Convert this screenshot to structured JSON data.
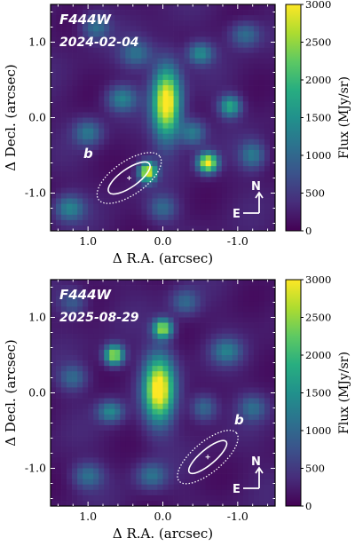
{
  "chart_data": [
    {
      "type": "heatmap",
      "filter": "F444W",
      "date": "2024-02-04",
      "companion_label": "b",
      "xlabel": "Δ R.A. (arcsec)",
      "ylabel": "Δ Decl. (arcsec)",
      "colorbar_label": "Flux (MJy/sr)",
      "x_ticks": [
        "1.0",
        "0.0",
        "-1.0"
      ],
      "y_ticks": [
        "1.0",
        "0.0",
        "-1.0"
      ],
      "colorbar_ticks": [
        "0",
        "500",
        "1000",
        "1500",
        "2000",
        "2500",
        "3000"
      ],
      "compass": {
        "north": "N",
        "east": "E"
      },
      "xlim": [
        1.5,
        -1.5
      ],
      "ylim": [
        -1.5,
        1.5
      ],
      "clim": [
        0,
        3000
      ],
      "colormap": "viridis",
      "sources": [
        {
          "x": -0.05,
          "y": 0.2,
          "sx": 0.13,
          "sy": 0.33,
          "peak": 3000
        },
        {
          "x": -0.6,
          "y": -0.6,
          "sx": 0.09,
          "sy": 0.09,
          "peak": 2900
        },
        {
          "x": 0.2,
          "y": -0.72,
          "sx": 0.08,
          "sy": 0.09,
          "peak": 2700
        },
        {
          "x": -0.9,
          "y": 0.15,
          "sx": 0.1,
          "sy": 0.1,
          "peak": 1600
        },
        {
          "x": -0.5,
          "y": 0.85,
          "sx": 0.12,
          "sy": 0.1,
          "peak": 1200
        },
        {
          "x": 0.55,
          "y": 0.25,
          "sx": 0.14,
          "sy": 0.12,
          "peak": 1100
        },
        {
          "x": -0.4,
          "y": -0.2,
          "sx": 0.12,
          "sy": 0.12,
          "peak": 1100
        },
        {
          "x": 1.0,
          "y": -0.2,
          "sx": 0.13,
          "sy": 0.12,
          "peak": 950
        },
        {
          "x": 0.35,
          "y": 0.85,
          "sx": 0.15,
          "sy": 0.13,
          "peak": 900
        },
        {
          "x": -1.2,
          "y": -0.5,
          "sx": 0.12,
          "sy": 0.13,
          "peak": 1000
        },
        {
          "x": 1.25,
          "y": -1.2,
          "sx": 0.14,
          "sy": 0.12,
          "peak": 1100
        },
        {
          "x": 0.9,
          "y": 1.2,
          "sx": 0.13,
          "sy": 0.12,
          "peak": 900
        },
        {
          "x": -1.1,
          "y": 1.1,
          "sx": 0.14,
          "sy": 0.12,
          "peak": 900
        },
        {
          "x": 0.0,
          "y": -1.2,
          "sx": 0.13,
          "sy": 0.12,
          "peak": 800
        }
      ],
      "contours": {
        "center": [
          0.45,
          -0.8
        ],
        "inner": [
          0.33,
          0.12
        ],
        "outer": [
          0.5,
          0.22
        ],
        "angle": -35
      },
      "marker": [
        0.45,
        -0.8
      ]
    },
    {
      "type": "heatmap",
      "filter": "F444W",
      "date": "2025-08-29",
      "companion_label": "b",
      "xlabel": "Δ R.A. (arcsec)",
      "ylabel": "Δ Decl. (arcsec)",
      "colorbar_label": "Flux (MJy/sr)",
      "x_ticks": [
        "1.0",
        "0.0",
        "-1.0"
      ],
      "y_ticks": [
        "1.0",
        "0.0",
        "-1.0"
      ],
      "colorbar_ticks": [
        "0",
        "500",
        "1000",
        "1500",
        "2000",
        "2500",
        "3000"
      ],
      "compass": {
        "north": "N",
        "east": "E"
      },
      "xlim": [
        1.5,
        -1.5
      ],
      "ylim": [
        -1.5,
        1.5
      ],
      "clim": [
        0,
        3000
      ],
      "colormap": "viridis",
      "sources": [
        {
          "x": 0.05,
          "y": 0.05,
          "sx": 0.14,
          "sy": 0.3,
          "peak": 3000
        },
        {
          "x": 0.0,
          "y": 0.85,
          "sx": 0.09,
          "sy": 0.09,
          "peak": 2400
        },
        {
          "x": 0.65,
          "y": 0.5,
          "sx": 0.09,
          "sy": 0.09,
          "peak": 2500
        },
        {
          "x": 0.7,
          "y": -0.25,
          "sx": 0.12,
          "sy": 0.1,
          "peak": 1200
        },
        {
          "x": -0.85,
          "y": 0.55,
          "sx": 0.14,
          "sy": 0.12,
          "peak": 1000
        },
        {
          "x": -0.55,
          "y": -0.2,
          "sx": 0.12,
          "sy": 0.12,
          "peak": 900
        },
        {
          "x": 1.2,
          "y": 0.2,
          "sx": 0.13,
          "sy": 0.12,
          "peak": 800
        },
        {
          "x": 1.0,
          "y": -1.1,
          "sx": 0.14,
          "sy": 0.12,
          "peak": 900
        },
        {
          "x": 0.15,
          "y": -1.1,
          "sx": 0.14,
          "sy": 0.12,
          "peak": 900
        },
        {
          "x": -0.3,
          "y": 1.2,
          "sx": 0.13,
          "sy": 0.12,
          "peak": 800
        },
        {
          "x": 1.2,
          "y": 1.2,
          "sx": 0.13,
          "sy": 0.12,
          "peak": 700
        },
        {
          "x": -1.2,
          "y": -0.2,
          "sx": 0.13,
          "sy": 0.12,
          "peak": 800
        }
      ],
      "contours": {
        "center": [
          -0.6,
          -0.85
        ],
        "inner": [
          0.32,
          0.1
        ],
        "outer": [
          0.5,
          0.2
        ],
        "angle": -40
      },
      "marker": [
        -0.6,
        -0.85
      ]
    }
  ]
}
